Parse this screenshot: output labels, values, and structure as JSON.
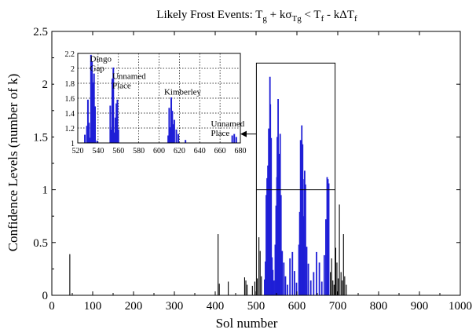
{
  "chart_data": [
    {
      "type": "bar",
      "title": {
        "main": "Likely Frost Events: T",
        "parts": [
          {
            "t": "Likely Frost Events: T",
            "s": "n"
          },
          {
            "t": "g",
            "s": "sub"
          },
          {
            "t": " + kσ",
            "s": "n"
          },
          {
            "t": "Tg",
            "s": "sub"
          },
          {
            "t": " < T",
            "s": "n"
          },
          {
            "t": "f",
            "s": "sub"
          },
          {
            "t": " - kΔT",
            "s": "n"
          },
          {
            "t": "f",
            "s": "sub"
          }
        ]
      },
      "xlabel": "Sol number",
      "ylabel": "Confidence Levels (number of k)",
      "xlim": [
        0,
        1000
      ],
      "ylim": [
        0,
        2.5
      ],
      "xticks": [
        "0",
        "100",
        "200",
        "300",
        "400",
        "500",
        "600",
        "700",
        "800",
        "900",
        "1000"
      ],
      "yticks": [
        "0",
        "0.5",
        "1",
        "1.5",
        "2",
        "2.5"
      ],
      "grid": false,
      "highlight": {
        "x_range": [
          520,
          680
        ],
        "y_range": [
          0,
          2.2
        ],
        "color": "#1f1fd6"
      },
      "series": [
        {
          "color": "#000000",
          "points": [
            [
              44,
              0.39
            ],
            [
              407,
              0.58
            ],
            [
              410,
              0.11
            ],
            [
              432,
              0.13
            ],
            [
              472,
              0.17
            ],
            [
              475,
              0.14
            ],
            [
              478,
              0.1
            ],
            [
              491,
              0.09
            ],
            [
              497,
              0.13
            ],
            [
              503,
              0.16
            ],
            [
              507,
              0.55
            ],
            [
              510,
              0.42
            ],
            [
              513,
              0.18
            ],
            [
              682,
              0.22
            ],
            [
              685,
              0.35
            ],
            [
              688,
              0.14
            ],
            [
              691,
              0.1
            ],
            [
              695,
              0.45
            ],
            [
              698,
              0.31
            ],
            [
              701,
              0.16
            ],
            [
              704,
              0.86
            ],
            [
              708,
              0.22
            ],
            [
              711,
              0.14
            ],
            [
              714,
              0.58
            ],
            [
              717,
              0.18
            ],
            [
              721,
              0.1
            ]
          ]
        },
        {
          "color": "#1f1fd6",
          "points": [
            [
              521,
              0.15
            ],
            [
              523,
              0.32
            ],
            [
              525,
              0.95
            ],
            [
              527,
              1.11
            ],
            [
              529,
              1.23
            ],
            [
              531,
              1.58
            ],
            [
              532,
              1.07
            ],
            [
              534,
              2.07
            ],
            [
              535,
              1.81
            ],
            [
              537,
              1.49
            ],
            [
              539,
              0.36
            ],
            [
              541,
              0.24
            ],
            [
              544,
              0.14
            ],
            [
              547,
              0.48
            ],
            [
              549,
              0.85
            ],
            [
              551,
              1.12
            ],
            [
              552,
              1.5
            ],
            [
              554,
              1.86
            ],
            [
              556,
              1.14
            ],
            [
              557,
              1.34
            ],
            [
              559,
              1.53
            ],
            [
              561,
              0.95
            ],
            [
              564,
              0.42
            ],
            [
              568,
              0.31
            ],
            [
              572,
              0.18
            ],
            [
              577,
              0.1
            ],
            [
              583,
              0.35
            ],
            [
              589,
              0.41
            ],
            [
              594,
              0.23
            ],
            [
              599,
              0.12
            ],
            [
              605,
              0.48
            ],
            [
              607,
              0.79
            ],
            [
              609,
              1.47
            ],
            [
              610,
              1.11
            ],
            [
              612,
              1.61
            ],
            [
              614,
              1.43
            ],
            [
              615,
              1.1
            ],
            [
              617,
              0.75
            ],
            [
              619,
              1.18
            ],
            [
              621,
              1.05
            ],
            [
              624,
              0.46
            ],
            [
              628,
              0.3
            ],
            [
              634,
              0.14
            ],
            [
              641,
              0.22
            ],
            [
              648,
              0.41
            ],
            [
              655,
              0.31
            ],
            [
              661,
              0.13
            ],
            [
              667,
              0.38
            ],
            [
              671,
              0.72
            ],
            [
              674,
              1.12
            ],
            [
              676,
              1.1
            ],
            [
              678,
              1.06
            ]
          ]
        }
      ]
    },
    {
      "type": "bar",
      "role": "inset",
      "xlim": [
        520,
        680
      ],
      "ylim": [
        1.0,
        2.2
      ],
      "xticks": [
        "520",
        "540",
        "560",
        "580",
        "600",
        "620",
        "640",
        "660",
        "680"
      ],
      "yticks": [
        "1",
        "1.2",
        "1.4",
        "1.6",
        "1.8",
        "2",
        "2.2"
      ],
      "grid": true,
      "annotations": [
        {
          "lines": [
            "Dingo",
            "Gap"
          ],
          "x": 532,
          "y": 2.09
        },
        {
          "lines": [
            "Unnamed",
            "Place"
          ],
          "x": 554,
          "y": 1.86
        },
        {
          "lines": [
            "Kimberley"
          ],
          "x": 605,
          "y": 1.65
        },
        {
          "lines": [
            "Unnamed",
            "Place"
          ],
          "x": 651,
          "y": 1.22
        }
      ],
      "series": [
        {
          "color": "#1f1fd6",
          "points": [
            [
              527,
              1.11
            ],
            [
              529,
              1.23
            ],
            [
              530,
              1.58
            ],
            [
              531,
              1.27
            ],
            [
              532,
              1.07
            ],
            [
              533,
              2.18
            ],
            [
              534,
              2.09
            ],
            [
              535,
              1.81
            ],
            [
              536,
              1.93
            ],
            [
              537,
              1.49
            ],
            [
              539,
              1.03
            ],
            [
              552,
              1.5
            ],
            [
              553,
              1.18
            ],
            [
              554,
              1.86
            ],
            [
              555,
              2.01
            ],
            [
              556,
              1.14
            ],
            [
              557,
              1.34
            ],
            [
              558,
              1.53
            ],
            [
              559,
              1.58
            ],
            [
              560,
              1.18
            ],
            [
              609,
              1.1
            ],
            [
              610,
              1.47
            ],
            [
              611,
              1.21
            ],
            [
              612,
              1.61
            ],
            [
              613,
              1.43
            ],
            [
              614,
              1.25
            ],
            [
              615,
              1.31
            ],
            [
              617,
              1.18
            ],
            [
              619,
              1.12
            ],
            [
              626,
              1.04
            ],
            [
              672,
              1.1
            ],
            [
              674,
              1.12
            ],
            [
              676,
              1.08
            ]
          ]
        }
      ]
    }
  ]
}
